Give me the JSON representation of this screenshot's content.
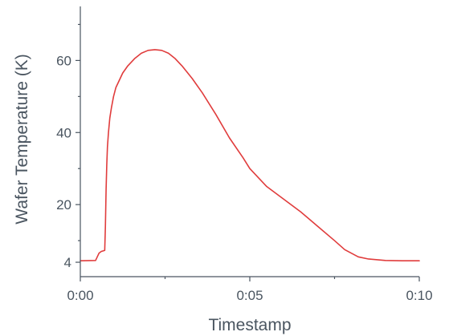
{
  "chart_data": {
    "type": "line",
    "title": "",
    "xlabel": "Timestamp",
    "ylabel": "Wafer Temperature (K)",
    "x_unit": "minutes",
    "xlim": [
      0,
      10
    ],
    "ylim": [
      0,
      75
    ],
    "x_ticks": [
      {
        "value": 0,
        "label": "0:00"
      },
      {
        "value": 5,
        "label": "0:05"
      },
      {
        "value": 10,
        "label": "0:10"
      }
    ],
    "y_ticks": [
      {
        "value": 4,
        "label": "4"
      },
      {
        "value": 20,
        "label": "20"
      },
      {
        "value": 40,
        "label": "40"
      },
      {
        "value": 60,
        "label": "60"
      }
    ],
    "y_minor_ticks": [
      10,
      30,
      50,
      70
    ],
    "x_minor_ticks": [
      2.5,
      7.5
    ],
    "grid": false,
    "legend": "none",
    "series": [
      {
        "color": "#e03c3c",
        "x": [
          0,
          0.45,
          0.5,
          0.55,
          0.62,
          0.72,
          0.74,
          0.76,
          0.78,
          0.8,
          0.83,
          0.87,
          0.92,
          0.98,
          1.05,
          1.15,
          1.25,
          1.4,
          1.6,
          1.8,
          2.0,
          2.2,
          2.4,
          2.6,
          2.8,
          3.0,
          3.3,
          3.6,
          4.0,
          4.4,
          4.8,
          5.0,
          5.2,
          5.5,
          6.0,
          6.5,
          7.0,
          7.5,
          7.8,
          8.2,
          8.5,
          9.0,
          9.5,
          10.0
        ],
        "values": [
          4.4,
          4.5,
          5.5,
          6.5,
          7.0,
          7.3,
          14,
          24,
          31,
          36,
          40,
          44,
          47,
          50,
          52.5,
          54.5,
          56.5,
          58.5,
          60.5,
          62,
          62.8,
          63.0,
          62.8,
          62,
          60.5,
          58.5,
          55,
          51,
          45,
          38.5,
          33,
          30,
          28,
          25,
          21.5,
          18,
          14,
          10,
          7.5,
          5.5,
          4.9,
          4.5,
          4.4,
          4.4
        ]
      }
    ]
  }
}
